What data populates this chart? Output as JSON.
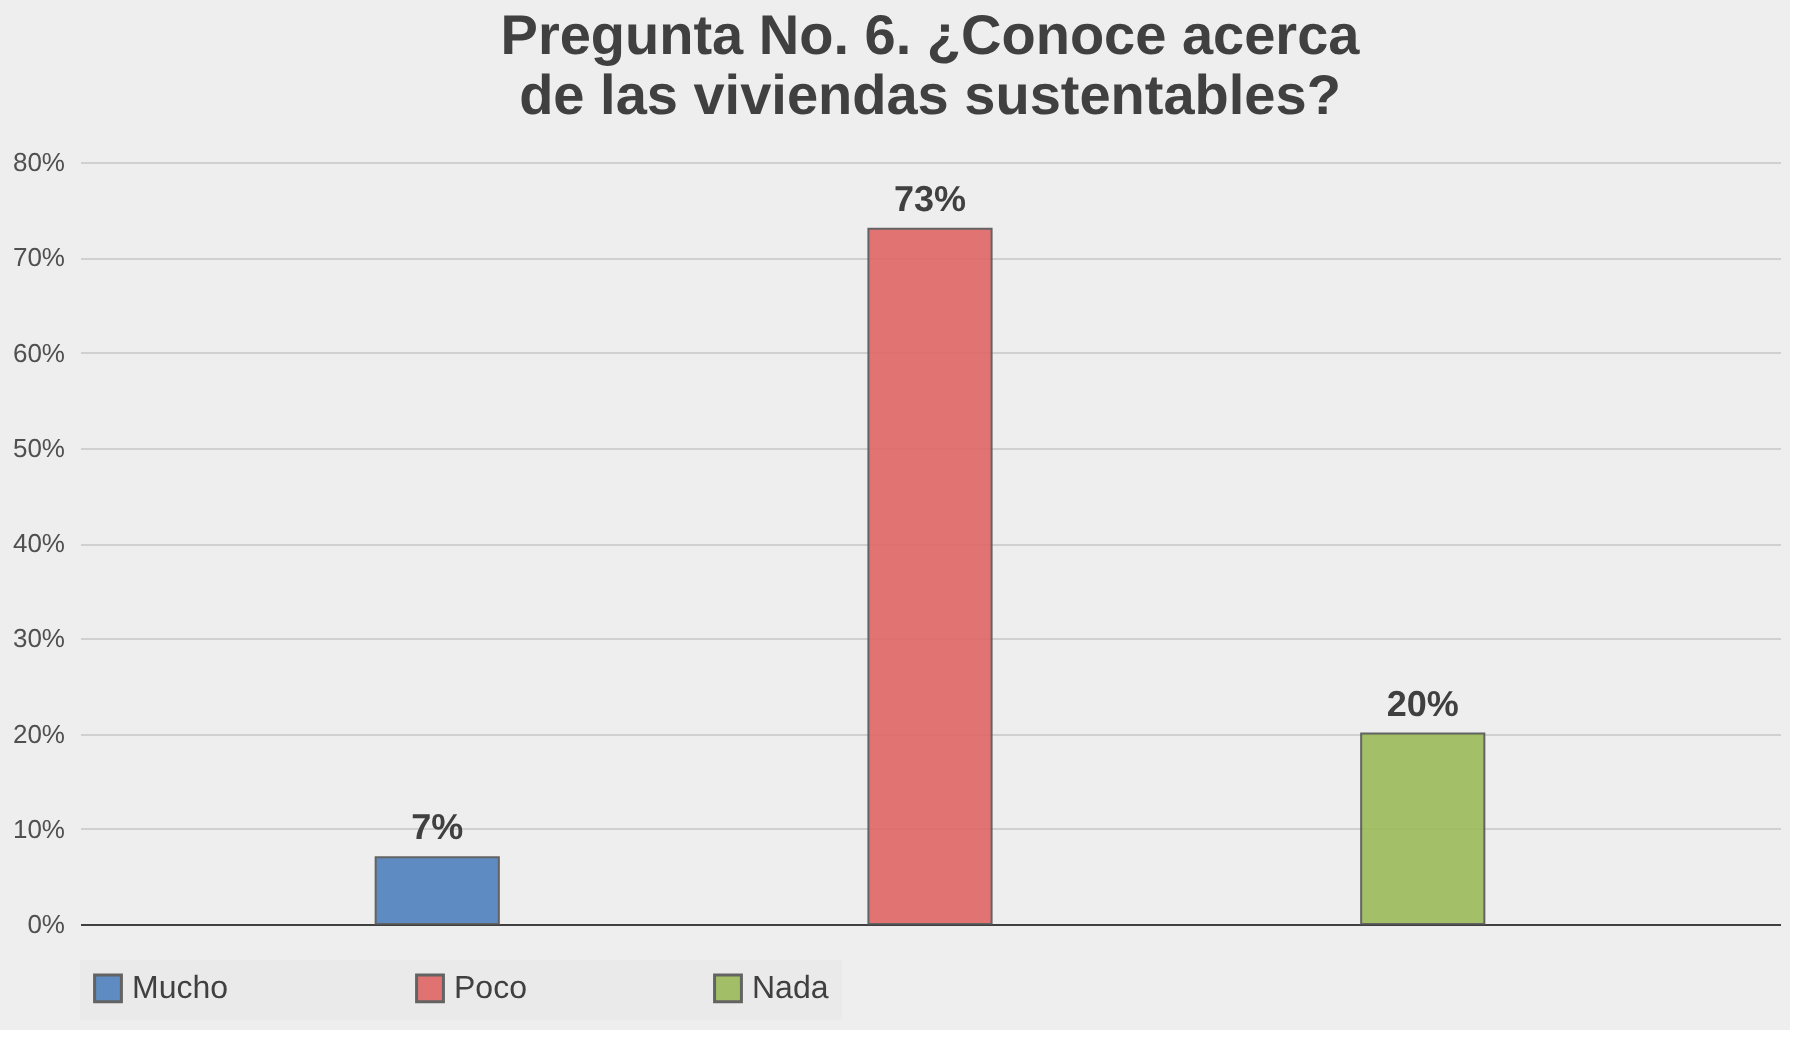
{
  "chart_data": {
    "type": "bar",
    "title": "Pregunta No. 6. ¿Conoce acerca de las viviendas sustentables?",
    "categories": [
      null,
      null,
      null
    ],
    "series": [
      {
        "name": "Mucho",
        "color": "#4f81bd",
        "values": [
          7,
          null,
          null
        ],
        "value_labels": [
          "7%",
          null,
          null
        ]
      },
      {
        "name": "Poco",
        "color": "#e06666",
        "values": [
          null,
          73,
          null
        ],
        "value_labels": [
          null,
          "73%",
          null
        ]
      },
      {
        "name": "Nada",
        "color": "#9bbb59",
        "values": [
          null,
          null,
          20
        ],
        "value_labels": [
          null,
          null,
          "20%"
        ]
      }
    ],
    "ylim": [
      0,
      80
    ],
    "yticks": [
      {
        "value": 0,
        "label": "0%"
      },
      {
        "value": 10,
        "label": "10%"
      },
      {
        "value": 20,
        "label": "20%"
      },
      {
        "value": 30,
        "label": "30%"
      },
      {
        "value": 40,
        "label": "40%"
      },
      {
        "value": 50,
        "label": "50%"
      },
      {
        "value": 60,
        "label": "60%"
      },
      {
        "value": 70,
        "label": "70%"
      },
      {
        "value": 80,
        "label": "80%"
      }
    ],
    "grid": "y",
    "legend": "bottom",
    "tick_labels": "y"
  }
}
